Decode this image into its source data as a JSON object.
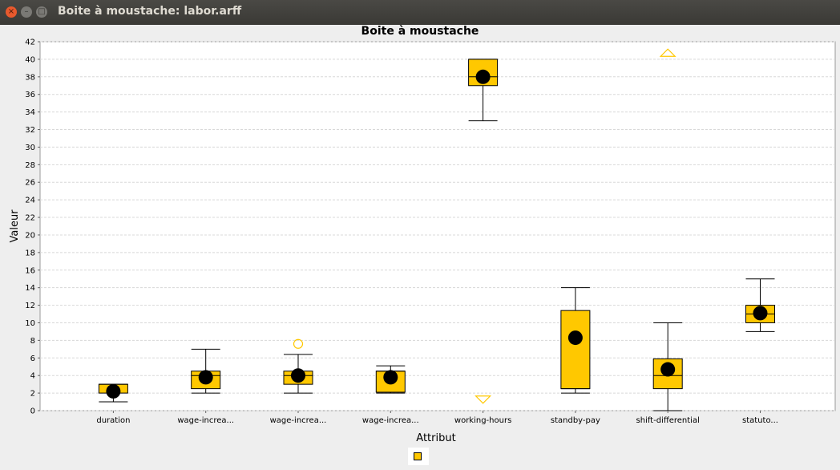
{
  "window": {
    "title": "Boite à moustache: labor.arff"
  },
  "window_controls": {
    "close": "×",
    "minimize": "–",
    "maximize": "□"
  },
  "colors": {
    "box_fill": "#ffc800",
    "outlier": "#ffc800",
    "mean_dot": "#000000",
    "grid": "#d8d8d8"
  },
  "chart_data": {
    "type": "box",
    "title": "Boite à moustache",
    "xlabel": "Attribut",
    "ylabel": "Valeur",
    "ylim": [
      0,
      42
    ],
    "yticks": [
      0,
      2,
      4,
      6,
      8,
      10,
      12,
      14,
      16,
      18,
      20,
      22,
      24,
      26,
      28,
      30,
      32,
      34,
      36,
      38,
      40,
      42
    ],
    "grid": true,
    "legend": "bottom-center",
    "categories": [
      "duration",
      "wage-increa...",
      "wage-increa...",
      "wage-increa...",
      "working-hours",
      "standby-pay",
      "shift-differential",
      "statuto..."
    ],
    "boxes": [
      {
        "q1": 2.0,
        "median": 3.0,
        "q3": 3.0,
        "low": 1.0,
        "high": 3.0,
        "mean": 2.2
      },
      {
        "q1": 2.5,
        "median": 4.0,
        "q3": 4.5,
        "low": 2.0,
        "high": 7.0,
        "mean": 3.8
      },
      {
        "q1": 3.0,
        "median": 4.0,
        "q3": 4.5,
        "low": 2.0,
        "high": 6.4,
        "mean": 4.0
      },
      {
        "q1": 2.1,
        "median": 4.5,
        "q3": 4.5,
        "low": 2.0,
        "high": 5.1,
        "mean": 3.8
      },
      {
        "q1": 37.0,
        "median": 38.0,
        "q3": 40.0,
        "low": 33.0,
        "high": 40.0,
        "mean": 38.0
      },
      {
        "q1": 2.5,
        "median": 2.5,
        "q3": 11.4,
        "low": 2.0,
        "high": 14.0,
        "mean": 8.3
      },
      {
        "q1": 2.5,
        "median": 4.0,
        "q3": 5.9,
        "low": 0.0,
        "high": 10.0,
        "mean": 4.7
      },
      {
        "q1": 10.0,
        "median": 11.0,
        "q3": 12.0,
        "low": 9.0,
        "high": 15.0,
        "mean": 11.1
      }
    ],
    "outliers": [
      {
        "category_index": 2,
        "value": 7.6,
        "shape": "circle"
      }
    ],
    "off_scale_markers": [
      {
        "category_index": 4,
        "direction": "down",
        "value": 1.3
      },
      {
        "category_index": 6,
        "direction": "up",
        "value": 40.7
      }
    ]
  }
}
